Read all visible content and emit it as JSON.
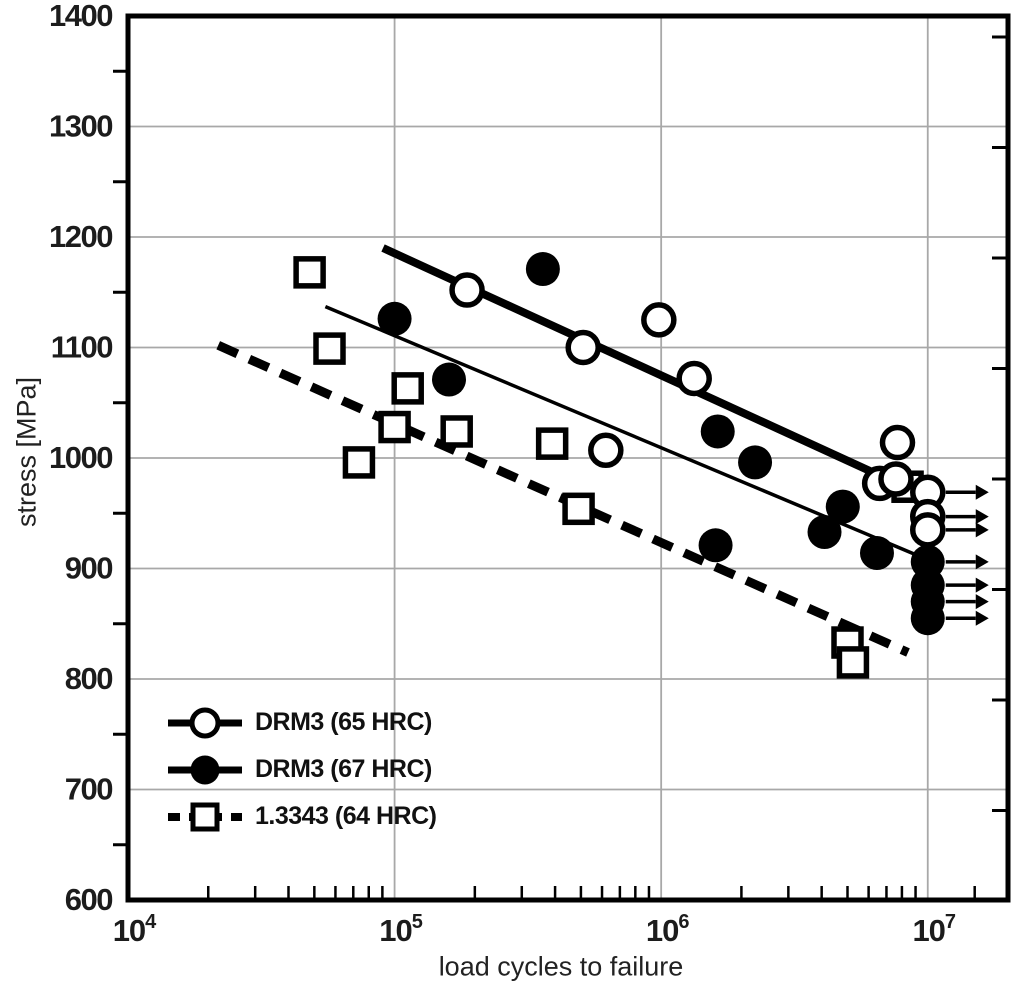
{
  "axes": {
    "x_label": "load cycles to failure",
    "y_label": "stress [MPa]",
    "x_tick_exponents": [
      4,
      5,
      6,
      7
    ],
    "y_ticks": [
      600,
      700,
      800,
      900,
      1000,
      1100,
      1200,
      1300,
      1400
    ],
    "y_minor_step": 50
  },
  "legend": [
    {
      "label": "DRM3 (65 HRC)",
      "marker": "open-circle",
      "line": "thick-solid"
    },
    {
      "label": "DRM3 (67 HRC)",
      "marker": "filled-circle",
      "line": "thin-solid"
    },
    {
      "label": "1.3343 (64 HRC)",
      "marker": "open-square",
      "line": "thick-dashed"
    }
  ],
  "colors": {
    "foreground": "#000000",
    "gridline": "#a8a8a8",
    "background": "#ffffff"
  },
  "chart_data": {
    "type": "scatter",
    "title": "",
    "xlabel": "load cycles to failure",
    "ylabel": "stress [MPa]",
    "x_scale": "log",
    "xlim": [
      10000,
      20000000
    ],
    "ylim": [
      600,
      1400
    ],
    "grid": true,
    "legend_position": "lower-left",
    "series": [
      {
        "name": "DRM3 (65 HRC)",
        "marker": "open-circle",
        "line_style": "thick-solid",
        "points": [
          [
            187000,
            1152
          ],
          [
            510000,
            1100
          ],
          [
            620000,
            1007
          ],
          [
            980000,
            1125
          ],
          [
            1330000,
            1072
          ],
          [
            6600000,
            977
          ],
          [
            7600000,
            981
          ],
          [
            7700000,
            1014
          ]
        ],
        "runouts": [
          [
            10000000,
            969
          ],
          [
            10000000,
            947
          ],
          [
            10000000,
            935
          ]
        ],
        "trend_line": [
          [
            90500,
            1190
          ],
          [
            6500000,
            985
          ]
        ]
      },
      {
        "name": "DRM3 (67 HRC)",
        "marker": "filled-circle",
        "line_style": "thin-solid",
        "points": [
          [
            100000,
            1126
          ],
          [
            160000,
            1071
          ],
          [
            360000,
            1171
          ],
          [
            1630000,
            1024
          ],
          [
            2250000,
            996
          ],
          [
            1600000,
            921
          ],
          [
            4100000,
            933
          ],
          [
            4800000,
            956
          ],
          [
            6450000,
            914
          ]
        ],
        "runouts": [
          [
            10000000,
            906
          ],
          [
            10000000,
            885
          ],
          [
            10000000,
            870
          ],
          [
            10000000,
            855
          ]
        ],
        "trend_line": [
          [
            55000,
            1137
          ],
          [
            10450000,
            906
          ]
        ]
      },
      {
        "name": "1.3343 (64 HRC)",
        "marker": "open-square",
        "line_style": "thick-dashed",
        "points": [
          [
            48000,
            1168
          ],
          [
            57000,
            1099
          ],
          [
            73500,
            996
          ],
          [
            100000,
            1028
          ],
          [
            112000,
            1063
          ],
          [
            171000,
            1024
          ],
          [
            390000,
            1013
          ],
          [
            490000,
            954
          ],
          [
            5000000,
            833
          ],
          [
            5240000,
            815
          ],
          [
            8400000,
            974
          ]
        ],
        "runouts": [],
        "trend_line": [
          [
            21800,
            1102
          ],
          [
            8430000,
            824
          ]
        ]
      }
    ]
  }
}
